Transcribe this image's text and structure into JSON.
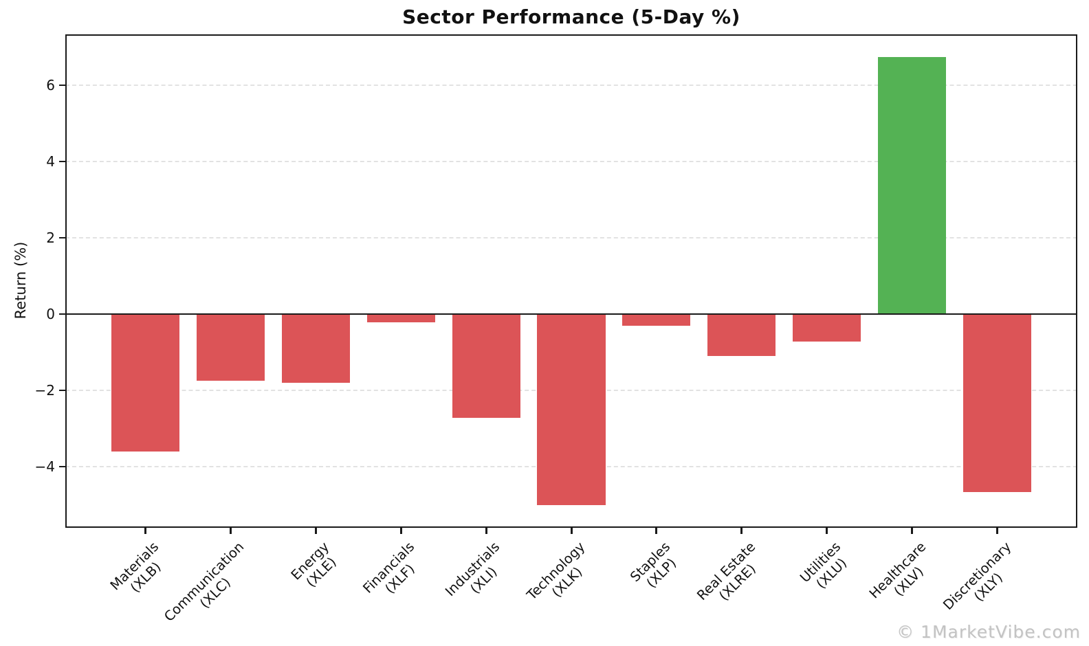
{
  "watermark": "© 1MarketVibe.com",
  "chart_data": {
    "type": "bar",
    "title": "Sector Performance (5-Day %)",
    "xlabel": "",
    "ylabel": "Return (%)",
    "categories": [
      "Materials\n(XLB)",
      "Communication\n(XLC)",
      "Energy\n(XLE)",
      "Financials\n(XLF)",
      "Industrials\n(XLI)",
      "Technology\n(XLK)",
      "Staples\n(XLP)",
      "Real Estate\n(XLRE)",
      "Utilities\n(XLU)",
      "Healthcare\n(XLV)",
      "Discretionary\n(XLY)"
    ],
    "values": [
      -3.61,
      -1.75,
      -1.8,
      -0.23,
      -2.73,
      -5.02,
      -0.32,
      -1.11,
      -0.73,
      6.73,
      -4.67
    ],
    "colors": {
      "positive": "#54b254",
      "negative": "#dc5457"
    },
    "yticks": [
      -4,
      -2,
      0,
      2,
      4,
      6
    ],
    "ylim": [
      -5.61,
      7.33
    ],
    "xlim": [
      -0.94,
      10.94
    ],
    "bar_width": 0.8,
    "grid": "horizontal-dashed",
    "zero_line": 0,
    "legend_position": "none"
  }
}
